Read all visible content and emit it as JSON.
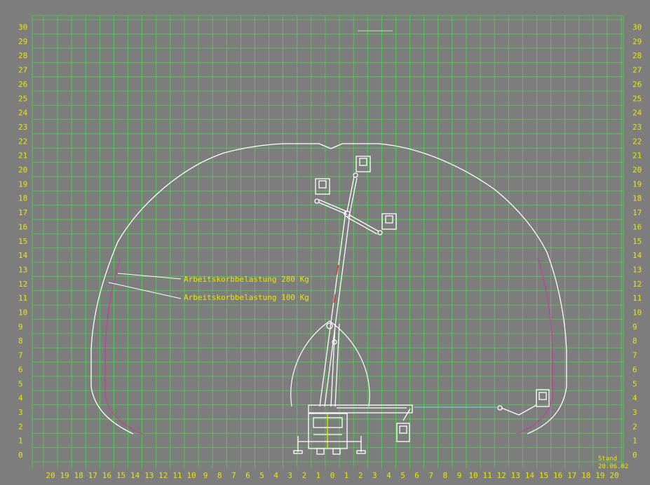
{
  "diagram": {
    "y_axis_labels": [
      "0",
      "1",
      "2",
      "3",
      "4",
      "5",
      "6",
      "7",
      "8",
      "9",
      "10",
      "11",
      "12",
      "13",
      "14",
      "15",
      "16",
      "17",
      "18",
      "19",
      "20",
      "21",
      "22",
      "23",
      "24",
      "25",
      "26",
      "27",
      "28",
      "29",
      "30"
    ],
    "x_axis_labels": [
      "20",
      "19",
      "18",
      "17",
      "16",
      "15",
      "14",
      "13",
      "12",
      "11",
      "10",
      "9",
      "8",
      "7",
      "6",
      "5",
      "4",
      "3",
      "2",
      "1",
      "0",
      "1",
      "2",
      "3",
      "4",
      "5",
      "6",
      "7",
      "8",
      "9",
      "10",
      "11",
      "12",
      "13",
      "14",
      "15",
      "16",
      "17",
      "18",
      "19",
      "20"
    ],
    "annotations": {
      "load_280": "Arbeitskorbbelastung  280 Kg",
      "load_100": "Arbeitskorbbelastung  100 Kg"
    },
    "stand_label": "Stand",
    "stand_date": "20.06.02",
    "colors": {
      "background": "#7d7d7d",
      "grid": "#4fd24f",
      "labels": "#e8e800",
      "envelope_outer": "#ffffff",
      "envelope_inner": "#c0409a",
      "boom": "#ffffff",
      "reach_line": "#5fd6c8"
    }
  }
}
